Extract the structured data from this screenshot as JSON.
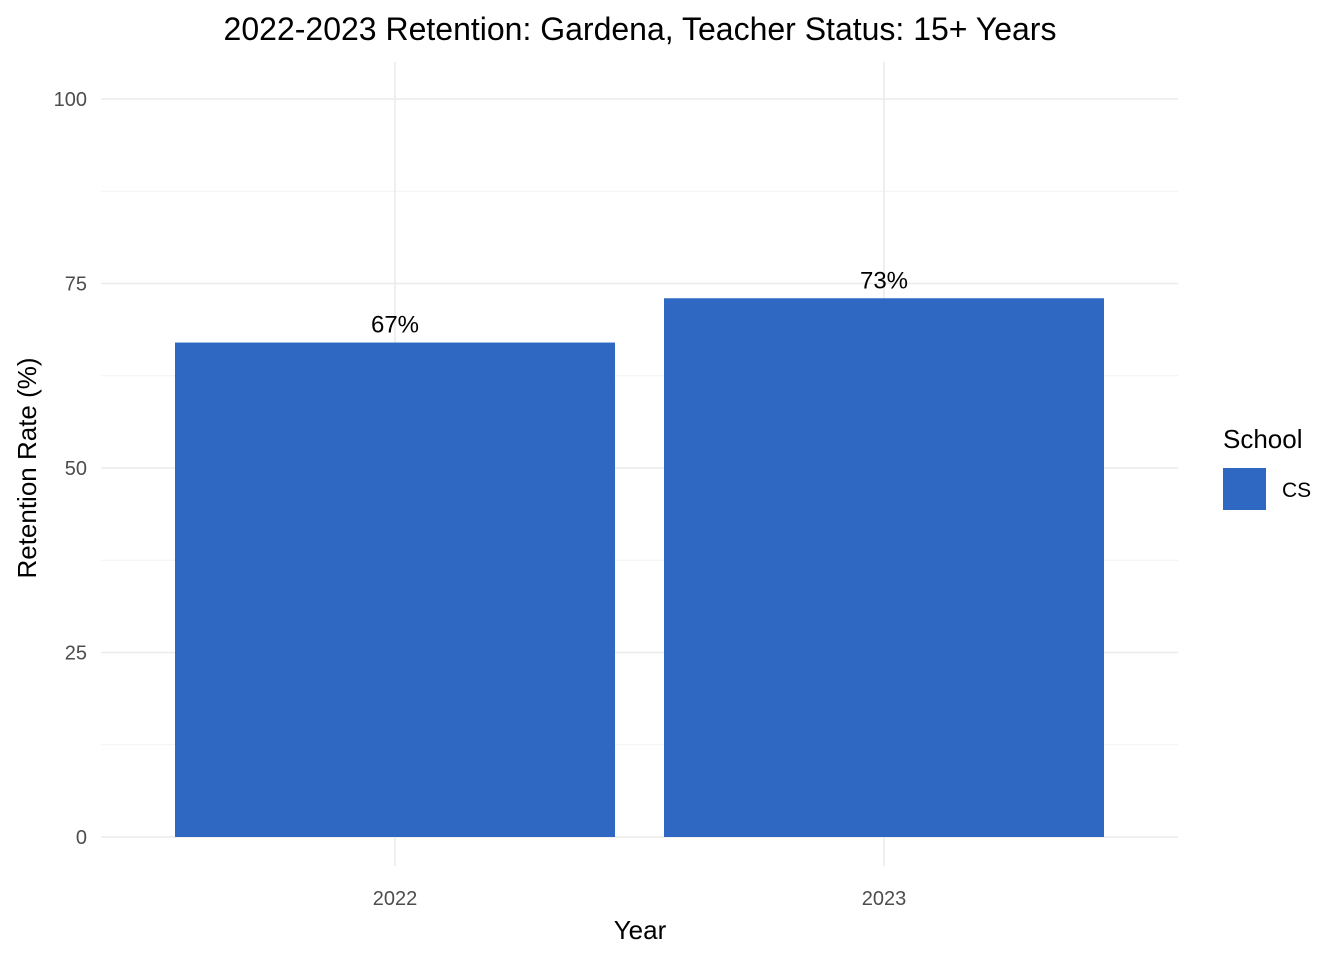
{
  "chart_data": {
    "type": "bar",
    "title": "2022-2023 Retention: Gardena, Teacher Status: 15+ Years",
    "xlabel": "Year",
    "ylabel": "Retention Rate (%)",
    "categories": [
      "2022",
      "2023"
    ],
    "series": [
      {
        "name": "CS",
        "values": [
          67,
          73
        ],
        "labels": [
          "67%",
          "73%"
        ],
        "color": "#2e68c3"
      }
    ],
    "ylim": [
      0,
      100
    ],
    "yticks": [
      0,
      25,
      50,
      75,
      100
    ],
    "ytick_labels": [
      "0",
      "25",
      "50",
      "75",
      "100"
    ],
    "grid": true,
    "legend": {
      "title": "School",
      "position": "right",
      "entries": [
        "CS"
      ]
    }
  }
}
